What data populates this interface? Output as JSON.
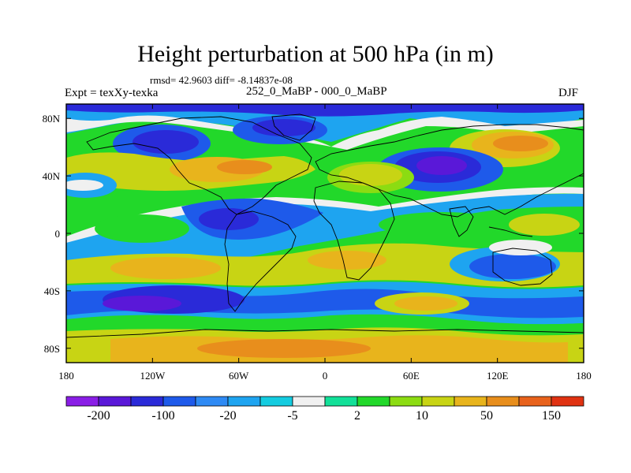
{
  "title": "Height perturbation at 500 hPa (in m)",
  "stats": "rmsd= 42.9603 diff= -8.14837e-08",
  "experiment": "Expt = texXy-texka",
  "comparison": "252_0_MaBP - 000_0_MaBP",
  "season": "DJF",
  "map": {
    "lon_range": [
      -180,
      180
    ],
    "lat_range": [
      -90,
      90
    ],
    "projection": "cylindrical equidistant",
    "x_ticks": [
      "180",
      "120W",
      "60W",
      "0",
      "60E",
      "120E",
      "180"
    ],
    "y_ticks": [
      "80N",
      "40N",
      "0",
      "40S",
      "80S"
    ]
  },
  "colorbar": {
    "labels": [
      "-200",
      "-100",
      "-20",
      "-5",
      "2",
      "10",
      "50",
      "150"
    ],
    "colors": [
      "#8a1ee6",
      "#5a18d8",
      "#2a2ad8",
      "#1e5aea",
      "#2e8af4",
      "#1ea4f0",
      "#14cce0",
      "#f0f0f0",
      "#12e098",
      "#22d82a",
      "#8cdc12",
      "#c8d414",
      "#e8b41c",
      "#e88e1c",
      "#e8621c",
      "#e03212"
    ]
  }
}
